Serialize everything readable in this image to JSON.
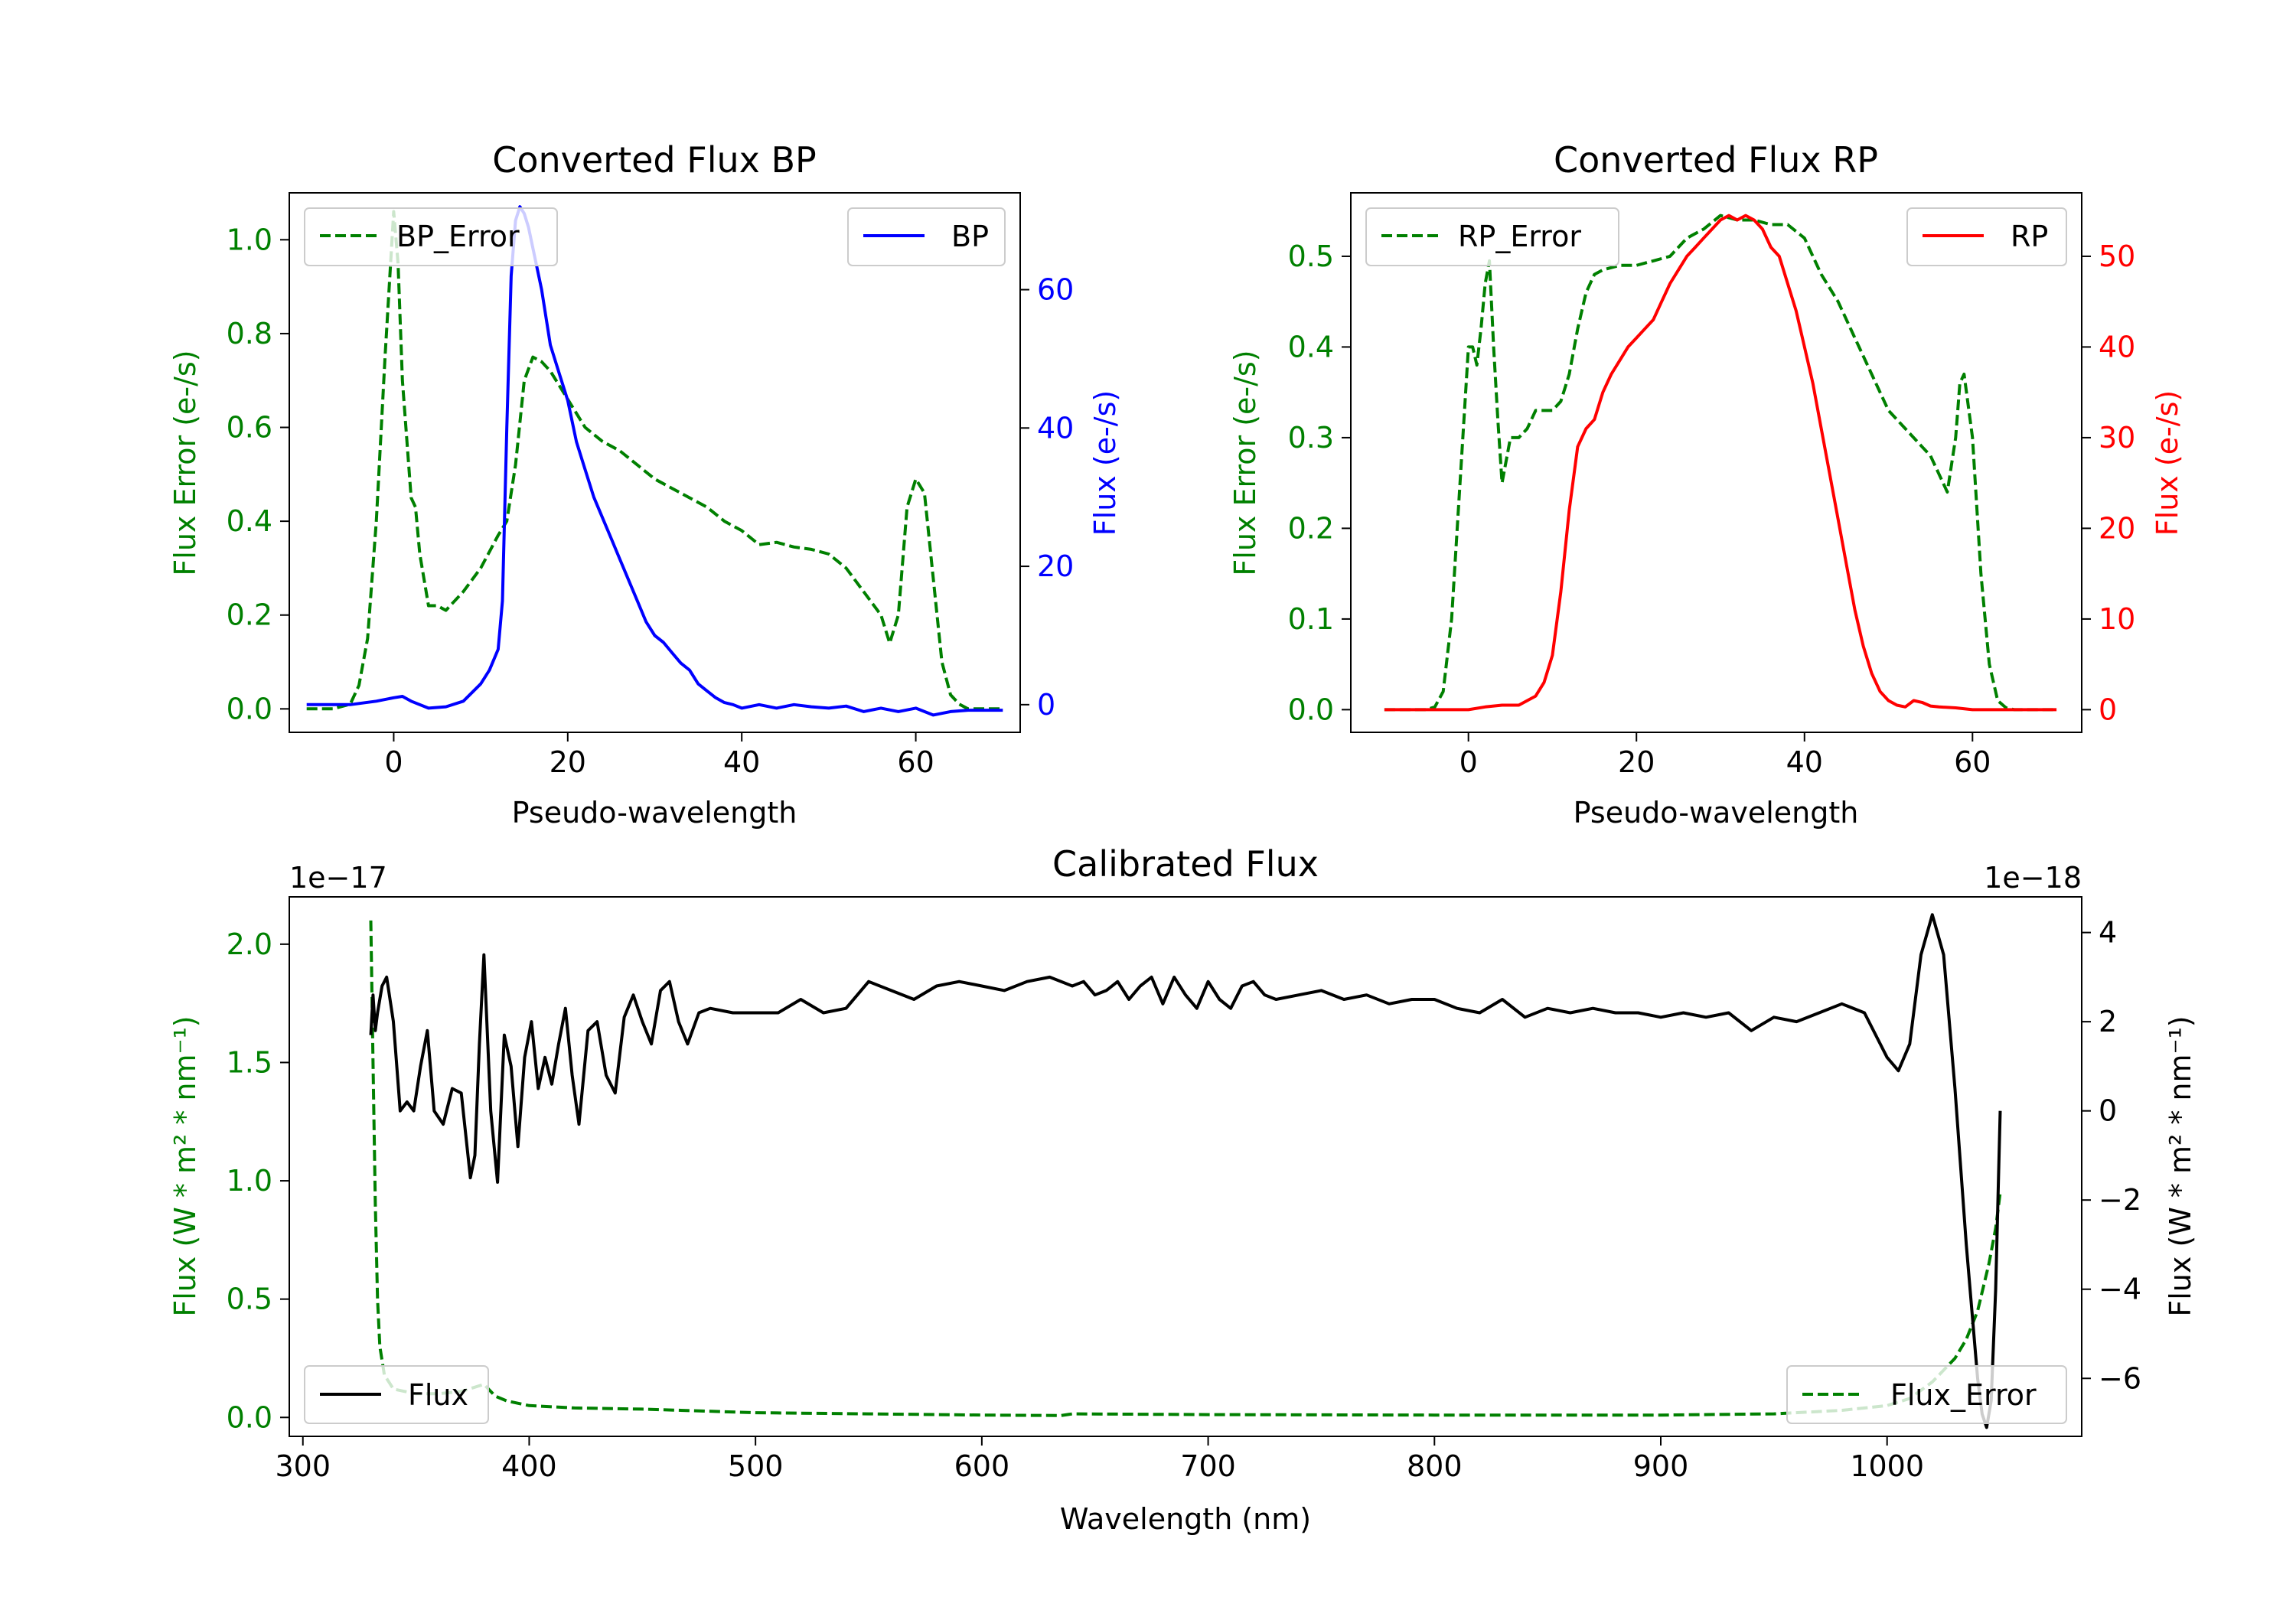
{
  "colors": {
    "error": "#008000",
    "bp": "#0000ff",
    "rp": "#ff0000",
    "flux": "#000000",
    "axis": "#000000"
  },
  "chart_data": [
    {
      "id": "bp",
      "type": "line",
      "title": "Converted Flux BP",
      "xlabel": "Pseudo-wavelength",
      "ylabel_left": "Flux Error (e-/s)",
      "ylabel_right": "Flux (e-/s)",
      "xlim": [
        -12,
        72
      ],
      "ylim_left": [
        -0.05,
        1.1
      ],
      "ylim_right": [
        -4,
        74
      ],
      "xticks": [
        0,
        20,
        40,
        60
      ],
      "xtick_labels": [
        "0",
        "20",
        "40",
        "60"
      ],
      "yticks_left": [
        0.0,
        0.2,
        0.4,
        0.6,
        0.8,
        1.0
      ],
      "ytick_labels_left": [
        "0.0",
        "0.2",
        "0.4",
        "0.6",
        "0.8",
        "1.0"
      ],
      "yticks_right": [
        0,
        20,
        40,
        60
      ],
      "ytick_labels_right": [
        "0",
        "20",
        "40",
        "60"
      ],
      "series": [
        {
          "name": "BP_Error",
          "axis": "left",
          "style": "dashed",
          "color": "#008000",
          "x": [
            -10,
            -7,
            -5,
            -4,
            -3,
            -2,
            -1,
            0,
            0.5,
            1,
            2,
            2.5,
            3,
            4,
            5,
            6,
            8,
            10,
            12,
            13,
            14,
            15,
            16,
            17,
            18,
            20,
            22,
            24,
            26,
            28,
            30,
            32,
            34,
            36,
            38,
            40,
            42,
            44,
            46,
            48,
            50,
            52,
            54,
            56,
            57,
            58,
            59,
            60,
            61,
            62,
            63,
            64,
            65,
            66,
            70
          ],
          "y": [
            0.0,
            0.0,
            0.01,
            0.05,
            0.15,
            0.4,
            0.75,
            1.06,
            0.95,
            0.7,
            0.45,
            0.43,
            0.33,
            0.22,
            0.22,
            0.21,
            0.25,
            0.3,
            0.37,
            0.4,
            0.52,
            0.7,
            0.75,
            0.74,
            0.72,
            0.66,
            0.6,
            0.57,
            0.55,
            0.52,
            0.49,
            0.47,
            0.45,
            0.43,
            0.4,
            0.38,
            0.35,
            0.355,
            0.345,
            0.34,
            0.33,
            0.3,
            0.25,
            0.2,
            0.14,
            0.2,
            0.43,
            0.49,
            0.46,
            0.28,
            0.1,
            0.03,
            0.01,
            0.0,
            0.0
          ]
        },
        {
          "name": "BP",
          "axis": "right",
          "style": "solid",
          "color": "#0000ff",
          "x": [
            -10,
            -5,
            -2,
            0,
            1,
            2,
            4,
            6,
            8,
            10,
            11,
            12,
            12.5,
            13,
            13.5,
            14,
            14.5,
            15,
            15.5,
            16,
            17,
            18,
            19,
            20,
            21,
            22,
            23,
            24,
            25,
            26,
            27,
            28,
            29,
            30,
            31,
            32,
            33,
            34,
            35,
            36,
            37,
            38,
            39,
            40,
            42,
            44,
            46,
            48,
            50,
            52,
            54,
            56,
            58,
            60,
            62,
            64,
            66,
            70
          ],
          "y": [
            0.0,
            0.0,
            0.5,
            1.0,
            1.2,
            0.5,
            -0.5,
            -0.3,
            0.5,
            3.0,
            5.0,
            8.0,
            15.0,
            40.0,
            62.0,
            70.0,
            72.0,
            71.0,
            69.0,
            66.0,
            60.0,
            52.0,
            48.0,
            44.0,
            38.0,
            34.0,
            30.0,
            27.0,
            24.0,
            21.0,
            18.0,
            15.0,
            12.0,
            10.0,
            9.0,
            7.5,
            6.0,
            5.0,
            3.0,
            2.0,
            1.0,
            0.3,
            0.0,
            -0.5,
            0.0,
            -0.5,
            0.0,
            -0.3,
            -0.5,
            -0.2,
            -1.0,
            -0.5,
            -1.0,
            -0.5,
            -1.5,
            -1.0,
            -0.8,
            -0.8
          ]
        }
      ],
      "legends": [
        {
          "text": "BP_Error",
          "style": "dashed",
          "color": "#008000",
          "loc": "upper left"
        },
        {
          "text": "BP",
          "style": "solid",
          "color": "#0000ff",
          "loc": "upper right"
        }
      ]
    },
    {
      "id": "rp",
      "type": "line",
      "title": "Converted Flux RP",
      "xlabel": "Pseudo-wavelength",
      "ylabel_left": "Flux Error (e-/s)",
      "ylabel_right": "Flux (e-/s)",
      "xlim": [
        -14,
        73
      ],
      "ylim_left": [
        -0.025,
        0.57
      ],
      "ylim_right": [
        -2.5,
        57
      ],
      "xticks": [
        0,
        20,
        40,
        60
      ],
      "xtick_labels": [
        "0",
        "20",
        "40",
        "60"
      ],
      "yticks_left": [
        0.0,
        0.1,
        0.2,
        0.3,
        0.4,
        0.5
      ],
      "ytick_labels_left": [
        "0.0",
        "0.1",
        "0.2",
        "0.3",
        "0.4",
        "0.5"
      ],
      "yticks_right": [
        0,
        10,
        20,
        30,
        40,
        50
      ],
      "ytick_labels_right": [
        "0",
        "10",
        "20",
        "30",
        "40",
        "50"
      ],
      "series": [
        {
          "name": "RP_Error",
          "axis": "left",
          "style": "dashed",
          "color": "#008000",
          "x": [
            -10,
            -5,
            -4,
            -3,
            -2,
            -1,
            0,
            0.5,
            1,
            1.5,
            2,
            2.5,
            3,
            3.5,
            4,
            5,
            6,
            7,
            8,
            9,
            10,
            11,
            12,
            13,
            14,
            15,
            16,
            18,
            20,
            22,
            24,
            26,
            28,
            30,
            32,
            34,
            36,
            38,
            40,
            42,
            44,
            46,
            48,
            50,
            52,
            54,
            55,
            56,
            57,
            58,
            58.5,
            59,
            60,
            61,
            62,
            63,
            64,
            65,
            66,
            70
          ],
          "y": [
            0.0,
            0.0,
            0.003,
            0.02,
            0.1,
            0.25,
            0.4,
            0.4,
            0.38,
            0.42,
            0.47,
            0.495,
            0.4,
            0.32,
            0.25,
            0.3,
            0.3,
            0.31,
            0.33,
            0.33,
            0.33,
            0.34,
            0.37,
            0.42,
            0.46,
            0.48,
            0.485,
            0.49,
            0.49,
            0.495,
            0.5,
            0.52,
            0.53,
            0.545,
            0.54,
            0.54,
            0.535,
            0.535,
            0.52,
            0.48,
            0.45,
            0.41,
            0.37,
            0.33,
            0.31,
            0.29,
            0.28,
            0.26,
            0.24,
            0.3,
            0.36,
            0.37,
            0.3,
            0.15,
            0.05,
            0.01,
            0.002,
            0.0,
            0.0,
            0.0
          ]
        },
        {
          "name": "RP",
          "axis": "right",
          "style": "solid",
          "color": "#ff0000",
          "x": [
            -10,
            -5,
            0,
            2,
            4,
            6,
            8,
            9,
            10,
            11,
            12,
            13,
            14,
            15,
            16,
            17,
            18,
            19,
            20,
            21,
            22,
            23,
            24,
            25,
            26,
            27,
            28,
            29,
            30,
            31,
            32,
            33,
            34,
            35,
            36,
            37,
            38,
            39,
            40,
            41,
            42,
            43,
            44,
            45,
            46,
            47,
            48,
            49,
            50,
            51,
            52,
            53,
            54,
            55,
            56,
            58,
            60,
            62,
            66,
            70
          ],
          "y": [
            0.0,
            0.0,
            0.0,
            0.3,
            0.5,
            0.5,
            1.5,
            3.0,
            6.0,
            13.0,
            22.0,
            29.0,
            31.0,
            32.0,
            35.0,
            37.0,
            38.5,
            40.0,
            41.0,
            42.0,
            43.0,
            45.0,
            47.0,
            48.5,
            50.0,
            51.0,
            52.0,
            53.0,
            54.0,
            54.5,
            54.0,
            54.5,
            54.0,
            53.0,
            51.0,
            50.0,
            47.0,
            44.0,
            40.0,
            36.0,
            31.0,
            26.0,
            21.0,
            16.0,
            11.0,
            7.0,
            4.0,
            2.0,
            1.0,
            0.5,
            0.3,
            1.0,
            0.8,
            0.4,
            0.3,
            0.2,
            0.0,
            0.0,
            0.0,
            0.0
          ]
        }
      ],
      "legends": [
        {
          "text": "RP_Error",
          "style": "dashed",
          "color": "#008000",
          "loc": "upper left"
        },
        {
          "text": "RP",
          "style": "solid",
          "color": "#ff0000",
          "loc": "upper right"
        }
      ]
    },
    {
      "id": "cal",
      "type": "line",
      "title": "Calibrated Flux",
      "xlabel": "Wavelength (nm)",
      "ylabel_left": "Flux (W * m² * nm⁻¹)",
      "ylabel_right": "Flux (W * m² * nm⁻¹)",
      "offset_left": "1e−17",
      "offset_right": "1e−18",
      "xlim": [
        294,
        1086
      ],
      "ylim_left": [
        -0.08,
        2.2
      ],
      "ylim_right": [
        -7.3,
        4.8
      ],
      "xticks": [
        300,
        400,
        500,
        600,
        700,
        800,
        900,
        1000
      ],
      "xtick_labels": [
        "300",
        "400",
        "500",
        "600",
        "700",
        "800",
        "900",
        "1000"
      ],
      "yticks_left": [
        0.0,
        0.5,
        1.0,
        1.5,
        2.0
      ],
      "ytick_labels_left": [
        "0.0",
        "0.5",
        "1.0",
        "1.5",
        "2.0"
      ],
      "yticks_right": [
        -6,
        -4,
        -2,
        0,
        2,
        4
      ],
      "ytick_labels_right": [
        "−6",
        "−4",
        "−2",
        "0",
        "2",
        "4"
      ],
      "series": [
        {
          "name": "Flux_Error",
          "axis": "left",
          "style": "dashed",
          "color": "#008000",
          "x": [
            330,
            331,
            332,
            333,
            334,
            336,
            340,
            345,
            350,
            360,
            370,
            380,
            385,
            390,
            400,
            420,
            450,
            500,
            550,
            600,
            635,
            640,
            700,
            800,
            900,
            950,
            980,
            1000,
            1010,
            1020,
            1030,
            1035,
            1040,
            1045,
            1048,
            1050
          ],
          "y": [
            2.1,
            1.5,
            0.9,
            0.5,
            0.3,
            0.18,
            0.12,
            0.11,
            0.1,
            0.1,
            0.11,
            0.14,
            0.09,
            0.07,
            0.05,
            0.04,
            0.035,
            0.02,
            0.015,
            0.01,
            0.008,
            0.015,
            0.012,
            0.01,
            0.01,
            0.015,
            0.03,
            0.05,
            0.08,
            0.15,
            0.25,
            0.33,
            0.45,
            0.65,
            0.8,
            0.95
          ]
        },
        {
          "name": "Flux",
          "axis": "right",
          "style": "solid",
          "color": "#000000",
          "x": [
            330,
            331,
            332,
            333,
            335,
            337,
            340,
            343,
            346,
            349,
            352,
            355,
            358,
            362,
            366,
            370,
            374,
            376,
            378,
            380,
            383,
            386,
            389,
            392,
            395,
            398,
            401,
            404,
            407,
            410,
            413,
            416,
            419,
            422,
            426,
            430,
            434,
            438,
            442,
            446,
            450,
            454,
            458,
            462,
            466,
            470,
            475,
            480,
            490,
            500,
            510,
            520,
            530,
            540,
            550,
            560,
            570,
            580,
            590,
            600,
            610,
            620,
            630,
            640,
            645,
            650,
            655,
            660,
            665,
            670,
            675,
            680,
            685,
            690,
            695,
            700,
            705,
            710,
            715,
            720,
            725,
            730,
            740,
            750,
            760,
            770,
            780,
            790,
            800,
            810,
            820,
            830,
            840,
            850,
            860,
            870,
            880,
            890,
            900,
            910,
            920,
            930,
            940,
            950,
            960,
            970,
            980,
            990,
            1000,
            1005,
            1010,
            1015,
            1020,
            1025,
            1030,
            1035,
            1040,
            1042,
            1044,
            1046,
            1048,
            1050
          ],
          "y": [
            1.7,
            2.6,
            1.8,
            2.2,
            2.8,
            3.0,
            2.0,
            0.0,
            0.2,
            0.0,
            1.0,
            1.8,
            0.0,
            -0.3,
            0.5,
            0.4,
            -1.5,
            -1.0,
            1.5,
            3.5,
            0.0,
            -1.6,
            1.7,
            1.0,
            -0.8,
            1.2,
            2.0,
            0.5,
            1.2,
            0.6,
            1.5,
            2.3,
            0.8,
            -0.3,
            1.8,
            2.0,
            0.8,
            0.4,
            2.1,
            2.6,
            2.0,
            1.5,
            2.7,
            2.9,
            2.0,
            1.5,
            2.2,
            2.3,
            2.2,
            2.2,
            2.2,
            2.5,
            2.2,
            2.3,
            2.9,
            2.7,
            2.5,
            2.8,
            2.9,
            2.8,
            2.7,
            2.9,
            3.0,
            2.8,
            2.9,
            2.6,
            2.7,
            2.9,
            2.5,
            2.8,
            3.0,
            2.4,
            3.0,
            2.6,
            2.3,
            2.9,
            2.5,
            2.3,
            2.8,
            2.9,
            2.6,
            2.5,
            2.6,
            2.7,
            2.5,
            2.6,
            2.4,
            2.5,
            2.5,
            2.3,
            2.2,
            2.5,
            2.1,
            2.3,
            2.2,
            2.3,
            2.2,
            2.2,
            2.1,
            2.2,
            2.1,
            2.2,
            1.8,
            2.1,
            2.0,
            2.2,
            2.4,
            2.2,
            1.2,
            0.9,
            1.5,
            3.5,
            4.4,
            3.5,
            0.5,
            -3.0,
            -6.0,
            -6.8,
            -7.1,
            -6.5,
            -4.0,
            0.0
          ]
        }
      ],
      "legends": [
        {
          "text": "Flux",
          "style": "solid",
          "color": "#000000",
          "loc": "lower left"
        },
        {
          "text": "Flux_Error",
          "style": "dashed",
          "color": "#008000",
          "loc": "lower right"
        }
      ]
    }
  ]
}
